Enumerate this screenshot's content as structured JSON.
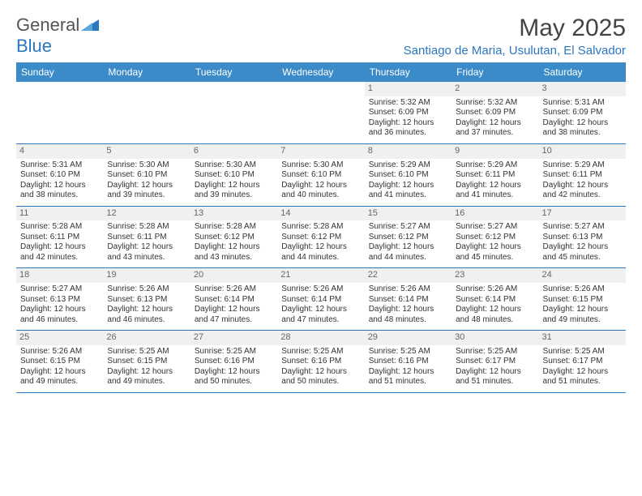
{
  "logo": {
    "word1": "General",
    "word2": "Blue"
  },
  "title": "May 2025",
  "location": "Santiago de Maria, Usulutan, El Salvador",
  "colors": {
    "header_bg": "#3b8bc9",
    "accent": "#2b77c0",
    "daynum_bg": "#eef0f2",
    "text": "#333333"
  },
  "day_headers": [
    "Sunday",
    "Monday",
    "Tuesday",
    "Wednesday",
    "Thursday",
    "Friday",
    "Saturday"
  ],
  "weeks": [
    [
      {
        "n": "",
        "sr": "",
        "ss": "",
        "dl": ""
      },
      {
        "n": "",
        "sr": "",
        "ss": "",
        "dl": ""
      },
      {
        "n": "",
        "sr": "",
        "ss": "",
        "dl": ""
      },
      {
        "n": "",
        "sr": "",
        "ss": "",
        "dl": ""
      },
      {
        "n": "1",
        "sr": "Sunrise: 5:32 AM",
        "ss": "Sunset: 6:09 PM",
        "dl": "Daylight: 12 hours and 36 minutes."
      },
      {
        "n": "2",
        "sr": "Sunrise: 5:32 AM",
        "ss": "Sunset: 6:09 PM",
        "dl": "Daylight: 12 hours and 37 minutes."
      },
      {
        "n": "3",
        "sr": "Sunrise: 5:31 AM",
        "ss": "Sunset: 6:09 PM",
        "dl": "Daylight: 12 hours and 38 minutes."
      }
    ],
    [
      {
        "n": "4",
        "sr": "Sunrise: 5:31 AM",
        "ss": "Sunset: 6:10 PM",
        "dl": "Daylight: 12 hours and 38 minutes."
      },
      {
        "n": "5",
        "sr": "Sunrise: 5:30 AM",
        "ss": "Sunset: 6:10 PM",
        "dl": "Daylight: 12 hours and 39 minutes."
      },
      {
        "n": "6",
        "sr": "Sunrise: 5:30 AM",
        "ss": "Sunset: 6:10 PM",
        "dl": "Daylight: 12 hours and 39 minutes."
      },
      {
        "n": "7",
        "sr": "Sunrise: 5:30 AM",
        "ss": "Sunset: 6:10 PM",
        "dl": "Daylight: 12 hours and 40 minutes."
      },
      {
        "n": "8",
        "sr": "Sunrise: 5:29 AM",
        "ss": "Sunset: 6:10 PM",
        "dl": "Daylight: 12 hours and 41 minutes."
      },
      {
        "n": "9",
        "sr": "Sunrise: 5:29 AM",
        "ss": "Sunset: 6:11 PM",
        "dl": "Daylight: 12 hours and 41 minutes."
      },
      {
        "n": "10",
        "sr": "Sunrise: 5:29 AM",
        "ss": "Sunset: 6:11 PM",
        "dl": "Daylight: 12 hours and 42 minutes."
      }
    ],
    [
      {
        "n": "11",
        "sr": "Sunrise: 5:28 AM",
        "ss": "Sunset: 6:11 PM",
        "dl": "Daylight: 12 hours and 42 minutes."
      },
      {
        "n": "12",
        "sr": "Sunrise: 5:28 AM",
        "ss": "Sunset: 6:11 PM",
        "dl": "Daylight: 12 hours and 43 minutes."
      },
      {
        "n": "13",
        "sr": "Sunrise: 5:28 AM",
        "ss": "Sunset: 6:12 PM",
        "dl": "Daylight: 12 hours and 43 minutes."
      },
      {
        "n": "14",
        "sr": "Sunrise: 5:28 AM",
        "ss": "Sunset: 6:12 PM",
        "dl": "Daylight: 12 hours and 44 minutes."
      },
      {
        "n": "15",
        "sr": "Sunrise: 5:27 AM",
        "ss": "Sunset: 6:12 PM",
        "dl": "Daylight: 12 hours and 44 minutes."
      },
      {
        "n": "16",
        "sr": "Sunrise: 5:27 AM",
        "ss": "Sunset: 6:12 PM",
        "dl": "Daylight: 12 hours and 45 minutes."
      },
      {
        "n": "17",
        "sr": "Sunrise: 5:27 AM",
        "ss": "Sunset: 6:13 PM",
        "dl": "Daylight: 12 hours and 45 minutes."
      }
    ],
    [
      {
        "n": "18",
        "sr": "Sunrise: 5:27 AM",
        "ss": "Sunset: 6:13 PM",
        "dl": "Daylight: 12 hours and 46 minutes."
      },
      {
        "n": "19",
        "sr": "Sunrise: 5:26 AM",
        "ss": "Sunset: 6:13 PM",
        "dl": "Daylight: 12 hours and 46 minutes."
      },
      {
        "n": "20",
        "sr": "Sunrise: 5:26 AM",
        "ss": "Sunset: 6:14 PM",
        "dl": "Daylight: 12 hours and 47 minutes."
      },
      {
        "n": "21",
        "sr": "Sunrise: 5:26 AM",
        "ss": "Sunset: 6:14 PM",
        "dl": "Daylight: 12 hours and 47 minutes."
      },
      {
        "n": "22",
        "sr": "Sunrise: 5:26 AM",
        "ss": "Sunset: 6:14 PM",
        "dl": "Daylight: 12 hours and 48 minutes."
      },
      {
        "n": "23",
        "sr": "Sunrise: 5:26 AM",
        "ss": "Sunset: 6:14 PM",
        "dl": "Daylight: 12 hours and 48 minutes."
      },
      {
        "n": "24",
        "sr": "Sunrise: 5:26 AM",
        "ss": "Sunset: 6:15 PM",
        "dl": "Daylight: 12 hours and 49 minutes."
      }
    ],
    [
      {
        "n": "25",
        "sr": "Sunrise: 5:26 AM",
        "ss": "Sunset: 6:15 PM",
        "dl": "Daylight: 12 hours and 49 minutes."
      },
      {
        "n": "26",
        "sr": "Sunrise: 5:25 AM",
        "ss": "Sunset: 6:15 PM",
        "dl": "Daylight: 12 hours and 49 minutes."
      },
      {
        "n": "27",
        "sr": "Sunrise: 5:25 AM",
        "ss": "Sunset: 6:16 PM",
        "dl": "Daylight: 12 hours and 50 minutes."
      },
      {
        "n": "28",
        "sr": "Sunrise: 5:25 AM",
        "ss": "Sunset: 6:16 PM",
        "dl": "Daylight: 12 hours and 50 minutes."
      },
      {
        "n": "29",
        "sr": "Sunrise: 5:25 AM",
        "ss": "Sunset: 6:16 PM",
        "dl": "Daylight: 12 hours and 51 minutes."
      },
      {
        "n": "30",
        "sr": "Sunrise: 5:25 AM",
        "ss": "Sunset: 6:17 PM",
        "dl": "Daylight: 12 hours and 51 minutes."
      },
      {
        "n": "31",
        "sr": "Sunrise: 5:25 AM",
        "ss": "Sunset: 6:17 PM",
        "dl": "Daylight: 12 hours and 51 minutes."
      }
    ]
  ]
}
